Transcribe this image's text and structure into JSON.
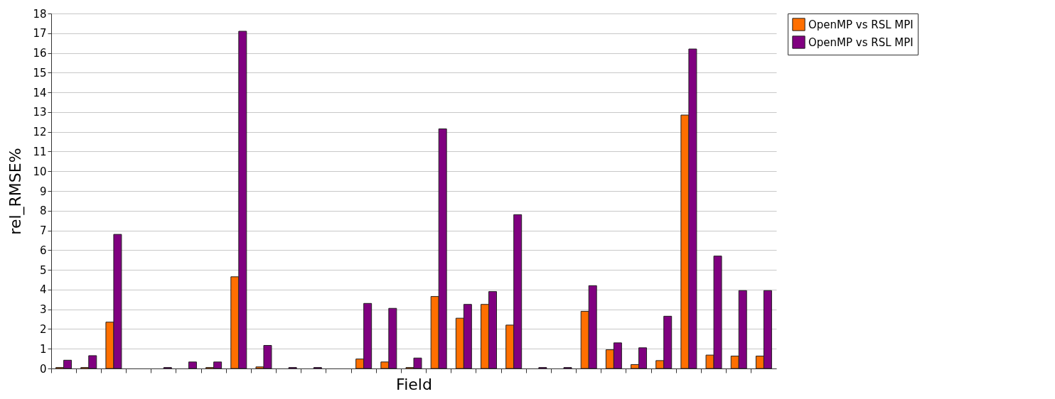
{
  "chart_data": {
    "type": "bar",
    "xlabel": "Field",
    "ylabel": "rel_RMSE%",
    "categories": [
      null,
      null,
      null,
      null,
      null,
      null,
      null,
      null,
      null,
      null,
      null,
      null,
      null,
      null,
      null,
      null,
      null,
      null,
      null,
      null,
      null,
      null,
      null,
      null,
      null,
      null,
      null,
      null,
      null
    ],
    "series": [
      {
        "name": "OpenMP vs RSL MPI",
        "color": "#ff6f00",
        "values": [
          0.05,
          0.05,
          2.35,
          null,
          null,
          null,
          0.05,
          4.65,
          0.08,
          null,
          null,
          null,
          0.48,
          0.33,
          0.05,
          3.65,
          2.55,
          3.25,
          2.2,
          null,
          null,
          2.9,
          0.95,
          0.2,
          0.4,
          12.85,
          0.68,
          0.63,
          0.63
        ]
      },
      {
        "name": "OpenMP vs RSL MPI",
        "color": "#800080",
        "values": [
          0.42,
          0.65,
          6.8,
          null,
          0.05,
          0.33,
          0.33,
          17.1,
          1.17,
          0.05,
          0.05,
          null,
          3.3,
          3.05,
          0.53,
          12.15,
          3.25,
          3.9,
          7.8,
          0.05,
          0.05,
          4.2,
          1.3,
          1.05,
          2.65,
          16.2,
          5.7,
          3.95,
          3.95
        ]
      }
    ],
    "ylim": [
      0,
      18
    ],
    "yticks": [
      0,
      1,
      2,
      3,
      4,
      5,
      6,
      7,
      8,
      9,
      10,
      11,
      12,
      13,
      14,
      15,
      16,
      17,
      18
    ],
    "grid": "y",
    "legend": "right",
    "tick_labels": "y"
  }
}
